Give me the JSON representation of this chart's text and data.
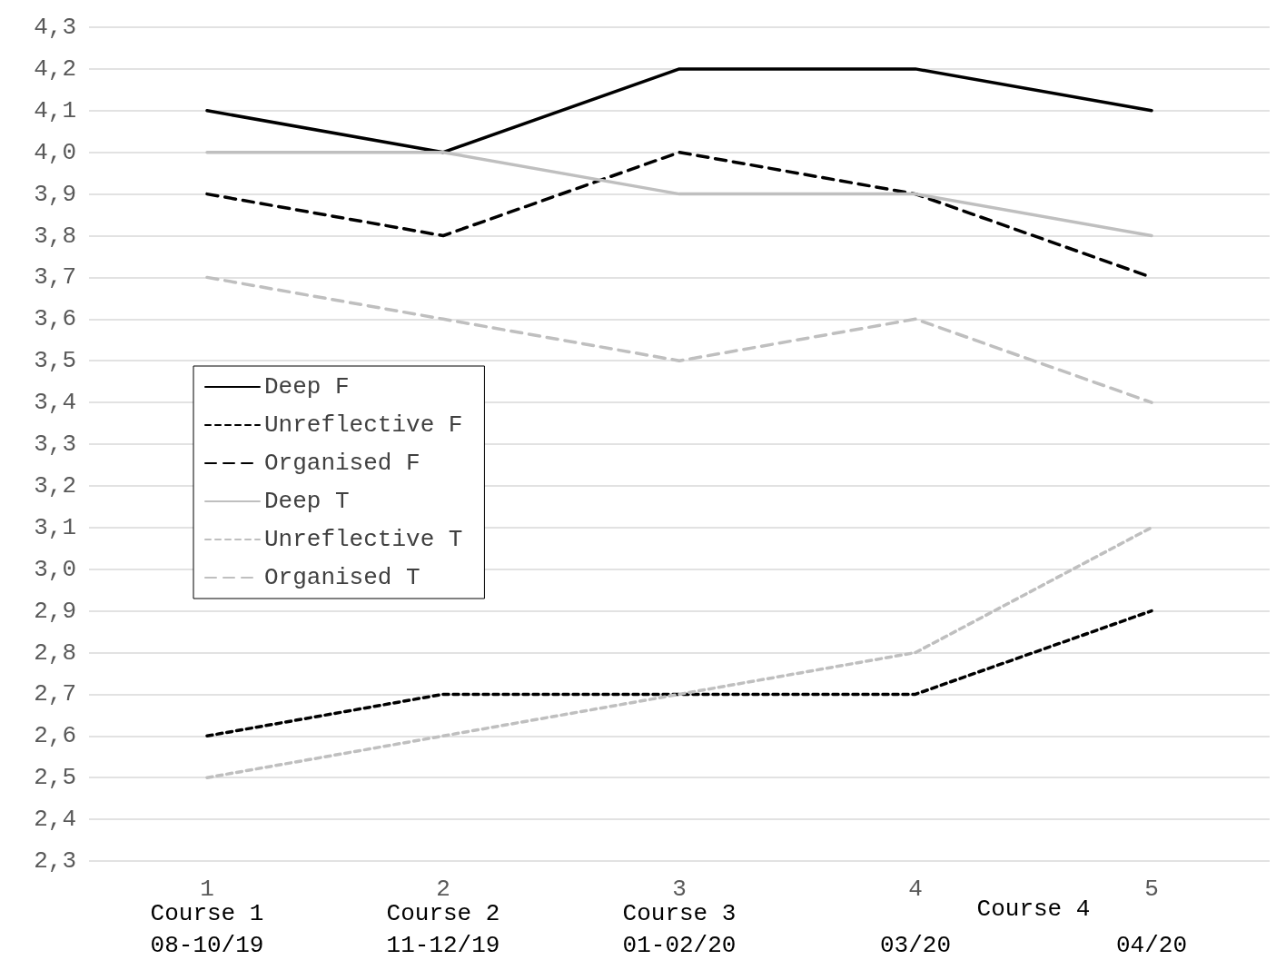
{
  "chart_data": {
    "type": "line",
    "categories": [
      "1",
      "2",
      "3",
      "4",
      "5"
    ],
    "series": [
      {
        "name": "Deep F",
        "color": "#000000",
        "line_style": "solid",
        "values": [
          4.1,
          4.0,
          4.2,
          4.2,
          4.1
        ]
      },
      {
        "name": "Unreflective F",
        "color": "#000000",
        "line_style": "dotted",
        "values": [
          2.6,
          2.7,
          2.7,
          2.7,
          2.9
        ]
      },
      {
        "name": "Organised F",
        "color": "#000000",
        "line_style": "dashed",
        "values": [
          3.9,
          3.8,
          4.0,
          3.9,
          3.7
        ]
      },
      {
        "name": "Deep T",
        "color": "#bfbfbf",
        "line_style": "solid",
        "values": [
          4.0,
          4.0,
          3.9,
          3.9,
          3.8
        ]
      },
      {
        "name": "Unreflective T",
        "color": "#bfbfbf",
        "line_style": "dotted",
        "values": [
          2.5,
          2.6,
          2.7,
          2.8,
          3.1
        ]
      },
      {
        "name": "Organised T",
        "color": "#bfbfbf",
        "line_style": "dashed",
        "values": [
          3.7,
          3.6,
          3.5,
          3.6,
          3.4
        ]
      }
    ],
    "ylim": [
      2.3,
      4.3
    ],
    "yticks": [
      {
        "value": 2.3,
        "label": "2,3"
      },
      {
        "value": 2.4,
        "label": "2,4"
      },
      {
        "value": 2.5,
        "label": "2,5"
      },
      {
        "value": 2.6,
        "label": "2,6"
      },
      {
        "value": 2.7,
        "label": "2,7"
      },
      {
        "value": 2.8,
        "label": "2,8"
      },
      {
        "value": 2.9,
        "label": "2,9"
      },
      {
        "value": 3.0,
        "label": "3,0"
      },
      {
        "value": 3.1,
        "label": "3,1"
      },
      {
        "value": 3.2,
        "label": "3,2"
      },
      {
        "value": 3.3,
        "label": "3,3"
      },
      {
        "value": 3.4,
        "label": "3,4"
      },
      {
        "value": 3.5,
        "label": "3,5"
      },
      {
        "value": 3.6,
        "label": "3,6"
      },
      {
        "value": 3.7,
        "label": "3,7"
      },
      {
        "value": 3.8,
        "label": "3,8"
      },
      {
        "value": 3.9,
        "label": "3,9"
      },
      {
        "value": 4.0,
        "label": "4,0"
      },
      {
        "value": 4.1,
        "label": "4,1"
      },
      {
        "value": 4.2,
        "label": "4,2"
      },
      {
        "value": 4.3,
        "label": "4,3"
      }
    ],
    "grid": "y",
    "legend": "left",
    "marker": "none",
    "annotations": [
      "Course 1\n08-10/19",
      "Course 2\n11-12/19",
      "Course 3\n01-02/20",
      "03/20",
      "04/20",
      "Course 4"
    ]
  }
}
